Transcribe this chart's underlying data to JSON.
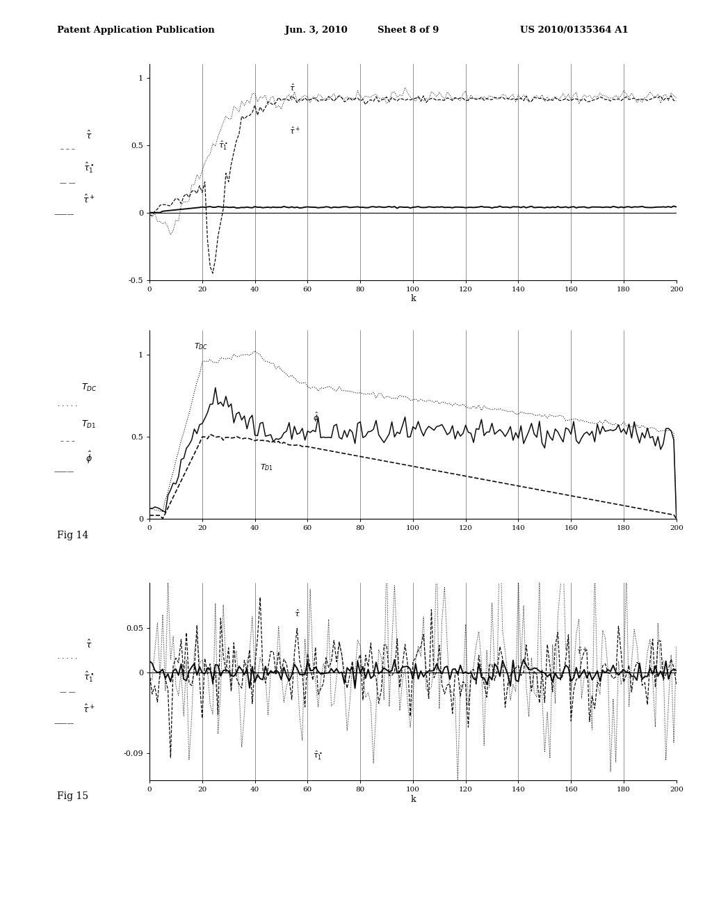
{
  "header_left": "Patent Application Publication",
  "header_center": "Jun. 3, 2010   Sheet 8 of 9",
  "header_right": "US 2010/0135364 A1",
  "fig14_label": "Fig 14",
  "fig15_label": "Fig 15",
  "chart1": {
    "xlim": [
      0,
      200
    ],
    "ylim": [
      -0.5,
      1.1
    ],
    "yticks": [
      -0.5,
      0,
      0.5,
      1
    ],
    "ytick_labels": [
      "-0.5",
      "0",
      "0.5",
      "1"
    ],
    "xticks": [
      0,
      20,
      40,
      60,
      80,
      100,
      120,
      140,
      160,
      180,
      200
    ],
    "xlabel": "k",
    "vlines": [
      20,
      40,
      60,
      80,
      100,
      120,
      140,
      160,
      180,
      200
    ]
  },
  "chart2": {
    "xlim": [
      0,
      200
    ],
    "ylim": [
      0,
      1.15
    ],
    "yticks": [
      0,
      0.5,
      1
    ],
    "ytick_labels": [
      "0",
      "0.5",
      "1"
    ],
    "xticks": [
      0,
      20,
      40,
      60,
      80,
      100,
      120,
      140,
      160,
      180,
      200
    ],
    "xlabel": "k",
    "vlines": [
      20,
      40,
      60,
      80,
      100,
      120,
      140,
      160,
      180,
      200
    ]
  },
  "chart3": {
    "xlim": [
      0,
      200
    ],
    "ylim": [
      -0.12,
      0.1
    ],
    "yticks": [
      -0.09,
      0,
      0.05
    ],
    "ytick_labels": [
      "-0.09",
      "0",
      "0.05"
    ],
    "xticks": [
      0,
      20,
      40,
      60,
      80,
      100,
      120,
      140,
      160,
      180,
      200
    ],
    "xlabel": "k",
    "vlines": [
      20,
      40,
      60,
      80,
      100,
      120,
      140,
      160,
      180,
      200
    ]
  },
  "bg_color": "#ffffff",
  "line_color": "#000000"
}
